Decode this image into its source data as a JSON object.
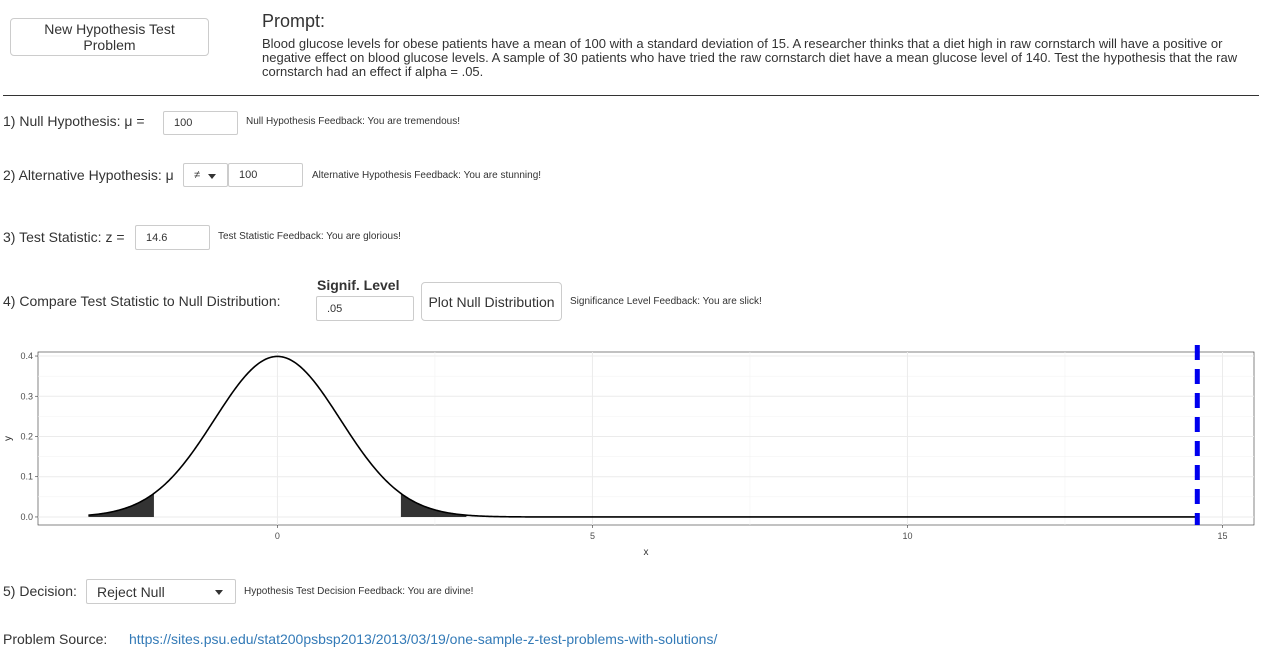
{
  "header": {
    "new_problem_button": "New Hypothesis Test Problem",
    "prompt_title": "Prompt:",
    "prompt_text": "Blood glucose levels for obese patients have a mean of 100 with a standard deviation of 15. A researcher thinks that a diet high in raw cornstarch will have a positive or negative effect on blood glucose levels. A sample of 30 patients who have tried the raw cornstarch diet have a mean glucose level of 140. Test the hypothesis that the raw cornstarch had an effect if alpha = .05."
  },
  "steps": {
    "null": {
      "label": "1) Null Hypothesis: μ =",
      "value": "100",
      "feedback": "Null Hypothesis Feedback: You are tremendous!"
    },
    "alternative": {
      "label": "2) Alternative Hypothesis: μ",
      "operator": "≠",
      "value": "100",
      "feedback": "Alternative Hypothesis Feedback: You are stunning!"
    },
    "test_statistic": {
      "label": "3) Test Statistic: z =",
      "value": "14.6",
      "feedback": "Test Statistic Feedback: You are glorious!"
    },
    "compare": {
      "label": "4) Compare Test Statistic to Null Distribution:",
      "signif_heading": "Signif. Level",
      "signif_value": ".05",
      "plot_button": "Plot Null Distribution",
      "feedback": "Significance Level Feedback: You are slick!"
    },
    "decision": {
      "label": "5) Decision:",
      "value": "Reject Null",
      "feedback": "Hypothesis Test Decision Feedback: You are divine!"
    }
  },
  "source": {
    "label": "Problem Source:",
    "url": "https://sites.psu.edu/stat200psbsp2013/2013/03/19/one-sample-z-test-problems-with-solutions/"
  },
  "chart_data": {
    "type": "line",
    "xlabel": "x",
    "ylabel": "y",
    "xlim": [
      -3.8,
      15.5
    ],
    "ylim": [
      -0.02,
      0.41
    ],
    "x_ticks": [
      0,
      5,
      10,
      15
    ],
    "y_ticks": [
      0.0,
      0.1,
      0.2,
      0.3,
      0.4
    ],
    "x_tick_labels": [
      "0",
      "5",
      "10",
      "15"
    ],
    "y_tick_labels": [
      "0.0",
      "0.1",
      "0.2",
      "0.3",
      "0.4"
    ],
    "curve": "standard normal density",
    "curve_range": [
      -3,
      14.6
    ],
    "shaded_tails": [
      [
        -3,
        -1.96
      ],
      [
        1.96,
        3
      ]
    ],
    "test_statistic_line": 14.6,
    "grid": true,
    "colors": {
      "curve": "#000000",
      "tails": "#333333",
      "stat_line": "#0000ee",
      "grid": "#ebebeb"
    }
  }
}
